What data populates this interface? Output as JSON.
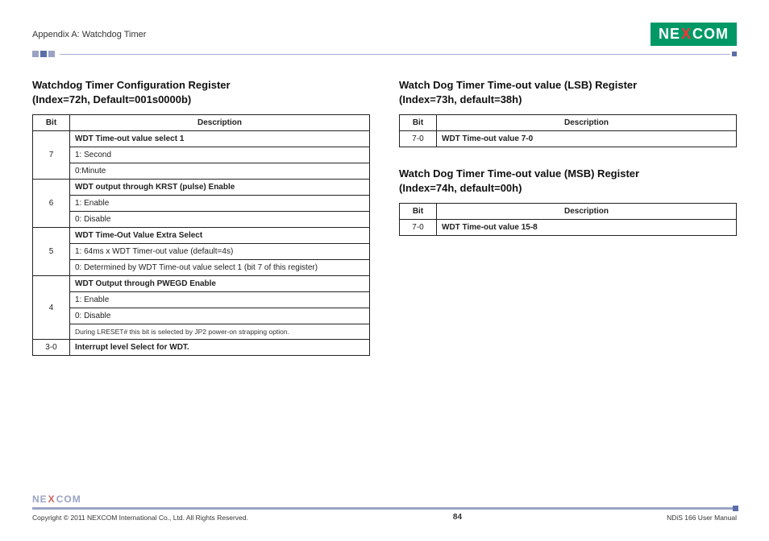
{
  "header": {
    "appendix": "Appendix A: Watchdog Timer",
    "logo_left": "NE",
    "logo_x": "X",
    "logo_right": "COM"
  },
  "left": {
    "title_l1": "Watchdog Timer Configuration Register",
    "title_l2": "(Index=72h, Default=001s0000b)",
    "th_bit": "Bit",
    "th_desc": "Description",
    "rows": [
      {
        "bit": "7",
        "lines": [
          {
            "text": "WDT Time-out value select 1",
            "bold": true
          },
          {
            "text": "1: Second"
          },
          {
            "text": "0:Minute"
          }
        ]
      },
      {
        "bit": "6",
        "lines": [
          {
            "text": "WDT output through KRST (pulse) Enable",
            "bold": true
          },
          {
            "text": "1: Enable"
          },
          {
            "text": "0: Disable"
          }
        ]
      },
      {
        "bit": "5",
        "lines": [
          {
            "text": "WDT Time-Out Value Extra Select",
            "bold": true
          },
          {
            "text": "1: 64ms x WDT Timer-out value (default=4s)"
          },
          {
            "text": "0: Determined by WDT Time-out value select 1 (bit 7 of this register)"
          }
        ]
      },
      {
        "bit": "4",
        "lines": [
          {
            "text": "WDT Output through PWEGD Enable",
            "bold": true
          },
          {
            "text": "1: Enable"
          },
          {
            "text": "0: Disable"
          },
          {
            "text": "During LRESET# this bit is selected by JP2 power-on strapping option.",
            "note": true
          }
        ]
      },
      {
        "bit": "3-0",
        "lines": [
          {
            "text": "Interrupt level Select for WDT.",
            "bold": true
          }
        ]
      }
    ]
  },
  "right": {
    "sec1_title_l1": "Watch Dog Timer Time-out value (LSB) Register",
    "sec1_title_l2": "(Index=73h, default=38h)",
    "sec1_th_bit": "Bit",
    "sec1_th_desc": "Description",
    "sec1_bit": "7-0",
    "sec1_desc": "WDT Time-out value 7-0",
    "sec2_title_l1": "Watch Dog Timer Time-out value (MSB) Register",
    "sec2_title_l2": "(Index=74h, default=00h)",
    "sec2_th_bit": "Bit",
    "sec2_th_desc": "Description",
    "sec2_bit": "7-0",
    "sec2_desc": "WDT Time-out value 15-8"
  },
  "footer": {
    "logo_left": "NE",
    "logo_x": "X",
    "logo_right": "COM",
    "copyright": "Copyright © 2011 NEXCOM International Co., Ltd. All Rights Reserved.",
    "page": "84",
    "manual": "NDiS 166 User Manual"
  }
}
